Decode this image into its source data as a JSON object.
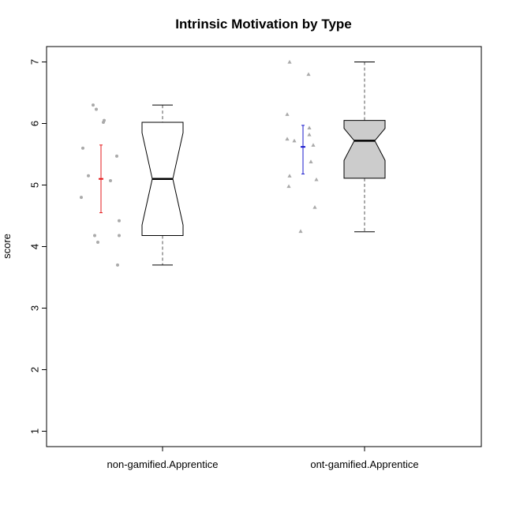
{
  "chart_data": {
    "type": "boxplot",
    "title": "Intrinsic Motivation by Type",
    "xlabel": "",
    "ylabel": "score",
    "ylim": [
      0.75,
      7.25
    ],
    "yticks": [
      "1",
      "2",
      "3",
      "4",
      "5",
      "6",
      "7"
    ],
    "grid": false,
    "legend": "none",
    "groups": [
      {
        "label": "non-gamified.Apprentice",
        "box": {
          "min": 3.7,
          "q1": 4.18,
          "median": 5.1,
          "q3": 6.02,
          "max": 6.3,
          "notch_low": 4.35,
          "notch_high": 5.85
        },
        "box_fill": "#ffffff",
        "mean": 5.1,
        "ci": [
          4.55,
          5.65
        ],
        "ci_color": "#e41a1c",
        "point_shape": "circle",
        "points": [
          6.3,
          6.23,
          6.05,
          6.02,
          5.6,
          5.47,
          5.15,
          5.07,
          4.8,
          4.42,
          4.18,
          4.18,
          4.07,
          3.7
        ]
      },
      {
        "label": "ont-gamified.Apprentice",
        "box": {
          "min": 4.24,
          "q1": 5.11,
          "median": 5.72,
          "q3": 6.05,
          "max": 7.0,
          "notch_low": 5.4,
          "notch_high": 5.92
        },
        "box_fill": "#cccccc",
        "mean": 5.62,
        "ci": [
          5.18,
          5.97
        ],
        "ci_color": "#1a1acd",
        "point_shape": "triangle",
        "points": [
          7.0,
          6.8,
          6.15,
          5.93,
          5.82,
          5.75,
          5.72,
          5.65,
          5.38,
          5.15,
          5.09,
          4.98,
          4.64,
          4.25
        ]
      }
    ]
  },
  "colors": {
    "points": "#aaaaaa",
    "axis": "#000000",
    "whisker": "#555555"
  }
}
